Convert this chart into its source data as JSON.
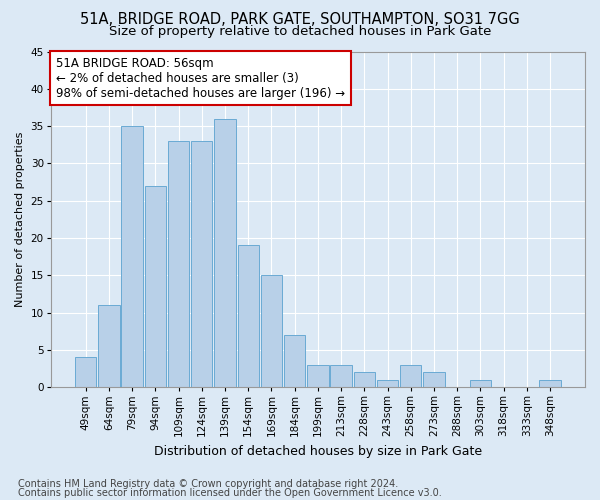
{
  "title1": "51A, BRIDGE ROAD, PARK GATE, SOUTHAMPTON, SO31 7GG",
  "title2": "Size of property relative to detached houses in Park Gate",
  "xlabel": "Distribution of detached houses by size in Park Gate",
  "ylabel": "Number of detached properties",
  "categories": [
    "49sqm",
    "64sqm",
    "79sqm",
    "94sqm",
    "109sqm",
    "124sqm",
    "139sqm",
    "154sqm",
    "169sqm",
    "184sqm",
    "199sqm",
    "213sqm",
    "228sqm",
    "243sqm",
    "258sqm",
    "273sqm",
    "288sqm",
    "303sqm",
    "318sqm",
    "333sqm",
    "348sqm"
  ],
  "values": [
    4,
    11,
    35,
    27,
    33,
    33,
    36,
    19,
    15,
    7,
    3,
    3,
    2,
    1,
    3,
    2,
    0,
    1,
    0,
    0,
    1
  ],
  "bar_color": "#b8d0e8",
  "bar_edge_color": "#6aaad4",
  "annotation_line1": "51A BRIDGE ROAD: 56sqm",
  "annotation_line2": "← 2% of detached houses are smaller (3)",
  "annotation_line3": "98% of semi-detached houses are larger (196) →",
  "annotation_box_color": "#ffffff",
  "annotation_box_edge_color": "#cc0000",
  "ylim": [
    0,
    45
  ],
  "yticks": [
    0,
    5,
    10,
    15,
    20,
    25,
    30,
    35,
    40,
    45
  ],
  "grid_color": "#ffffff",
  "background_color": "#dce9f5",
  "footer1": "Contains HM Land Registry data © Crown copyright and database right 2024.",
  "footer2": "Contains public sector information licensed under the Open Government Licence v3.0.",
  "title1_fontsize": 10.5,
  "title2_fontsize": 9.5,
  "xlabel_fontsize": 9,
  "ylabel_fontsize": 8,
  "tick_fontsize": 7.5,
  "annotation_fontsize": 8.5,
  "footer_fontsize": 7
}
